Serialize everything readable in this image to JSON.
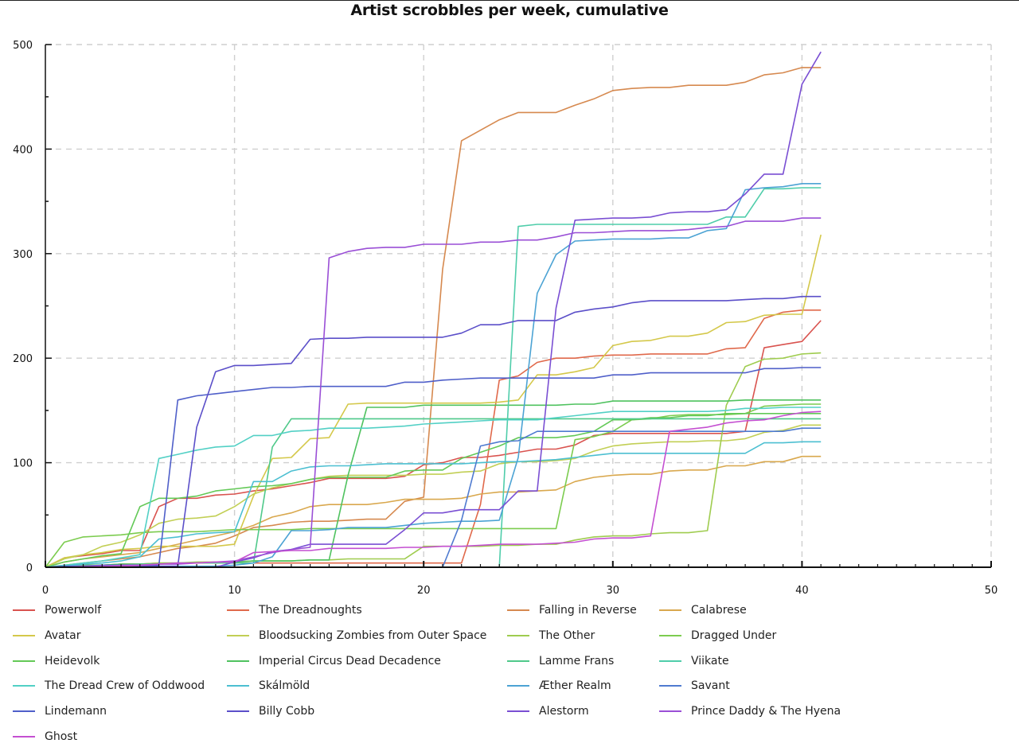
{
  "chart_data": {
    "type": "line",
    "title": "Artist scrobbles per week, cumulative",
    "xlabel": "",
    "ylabel": "",
    "xlim": [
      0,
      50
    ],
    "ylim": [
      0,
      500
    ],
    "x_ticks": [
      0,
      10,
      20,
      30,
      40,
      50
    ],
    "y_ticks": [
      0,
      100,
      200,
      300,
      400,
      500
    ],
    "grid": true,
    "legend_position": "bottom",
    "x": [
      0,
      1,
      2,
      3,
      4,
      5,
      6,
      7,
      8,
      9,
      10,
      11,
      12,
      13,
      14,
      15,
      16,
      17,
      18,
      19,
      20,
      21,
      22,
      23,
      24,
      25,
      26,
      27,
      28,
      29,
      30,
      31,
      32,
      33,
      34,
      35,
      36,
      37,
      38,
      39,
      40,
      41
    ],
    "series": [
      {
        "name": "Powerwolf",
        "color": "#d9534f",
        "values": [
          0,
          9,
          11,
          13,
          16,
          16,
          58,
          66,
          66,
          69,
          70,
          73,
          75,
          78,
          81,
          85,
          85,
          85,
          85,
          87,
          98,
          100,
          105,
          105,
          107,
          110,
          113,
          113,
          117,
          126,
          128,
          128,
          128,
          128,
          128,
          128,
          128,
          130,
          210,
          213,
          216,
          236
        ]
      },
      {
        "name": "The Dreadnoughts",
        "color": "#e0694b",
        "values": [
          0,
          1,
          2,
          2,
          3,
          3,
          4,
          4,
          4,
          4,
          4,
          4,
          4,
          4,
          4,
          4,
          4,
          4,
          4,
          4,
          4,
          4,
          4,
          60,
          179,
          183,
          196,
          200,
          200,
          202,
          203,
          203,
          204,
          204,
          204,
          204,
          209,
          210,
          238,
          244,
          246,
          246
        ]
      },
      {
        "name": "Falling in Reverse",
        "color": "#d6894f",
        "values": [
          0,
          2,
          4,
          6,
          8,
          10,
          14,
          18,
          20,
          23,
          30,
          38,
          40,
          43,
          44,
          44,
          45,
          46,
          46,
          63,
          67,
          285,
          408,
          418,
          428,
          435,
          435,
          435,
          442,
          448,
          456,
          458,
          459,
          459,
          461,
          461,
          461,
          464,
          471,
          473,
          478,
          478
        ]
      },
      {
        "name": "Calabrese",
        "color": "#d9a84e",
        "values": [
          0,
          5,
          8,
          10,
          12,
          14,
          18,
          22,
          26,
          30,
          34,
          40,
          48,
          52,
          58,
          60,
          60,
          60,
          62,
          65,
          65,
          65,
          66,
          70,
          72,
          72,
          73,
          74,
          82,
          86,
          88,
          89,
          89,
          92,
          93,
          93,
          97,
          97,
          101,
          101,
          106,
          106
        ]
      },
      {
        "name": "Avatar",
        "color": "#d4c84a",
        "values": [
          0,
          9,
          12,
          14,
          17,
          18,
          20,
          20,
          20,
          20,
          22,
          68,
          104,
          105,
          123,
          124,
          156,
          157,
          157,
          157,
          157,
          157,
          157,
          157,
          158,
          160,
          184,
          184,
          187,
          191,
          212,
          216,
          217,
          221,
          221,
          224,
          234,
          235,
          241,
          242,
          242,
          318
        ]
      },
      {
        "name": "Bloodsucking Zombies from Outer Space",
        "color": "#c2cf55",
        "values": [
          0,
          8,
          12,
          20,
          24,
          31,
          42,
          46,
          47,
          49,
          58,
          70,
          76,
          80,
          84,
          87,
          88,
          88,
          88,
          88,
          89,
          89,
          91,
          92,
          99,
          101,
          101,
          102,
          104,
          111,
          116,
          118,
          119,
          120,
          120,
          121,
          121,
          123,
          129,
          131,
          136,
          136
        ]
      },
      {
        "name": "The Other",
        "color": "#9fcc4f",
        "values": [
          0,
          1,
          2,
          2,
          3,
          3,
          4,
          4,
          5,
          5,
          5,
          6,
          6,
          6,
          7,
          7,
          8,
          8,
          8,
          8,
          20,
          20,
          20,
          20,
          21,
          21,
          22,
          22,
          26,
          29,
          30,
          30,
          32,
          33,
          33,
          35,
          155,
          192,
          199,
          200,
          204,
          205
        ]
      },
      {
        "name": "Dragged Under",
        "color": "#7ccc4f",
        "values": [
          0,
          24,
          29,
          30,
          31,
          33,
          34,
          34,
          34,
          35,
          36,
          36,
          36,
          36,
          37,
          37,
          37,
          37,
          37,
          37,
          37,
          37,
          37,
          37,
          37,
          37,
          37,
          37,
          122,
          125,
          130,
          141,
          142,
          145,
          146,
          146,
          146,
          147,
          154,
          155,
          156,
          156
        ]
      },
      {
        "name": "Heidevolk",
        "color": "#63c957",
        "values": [
          0,
          5,
          8,
          11,
          13,
          58,
          66,
          66,
          68,
          73,
          75,
          77,
          78,
          80,
          84,
          86,
          86,
          86,
          86,
          92,
          93,
          93,
          104,
          110,
          116,
          124,
          124,
          124,
          126,
          130,
          141,
          141,
          143,
          143,
          145,
          145,
          147,
          147,
          147,
          147,
          147,
          147
        ]
      },
      {
        "name": "Imperial Circus Dead Decadence",
        "color": "#4fc25f",
        "values": [
          0,
          1,
          2,
          2,
          3,
          3,
          3,
          4,
          4,
          4,
          5,
          6,
          6,
          6,
          7,
          7,
          88,
          153,
          153,
          153,
          155,
          155,
          155,
          155,
          155,
          155,
          155,
          155,
          156,
          156,
          159,
          159,
          159,
          159,
          159,
          159,
          159,
          160,
          160,
          160,
          160,
          160
        ]
      },
      {
        "name": "Lamme Frans",
        "color": "#4fc98a",
        "values": [
          0,
          1,
          1,
          2,
          2,
          3,
          3,
          4,
          4,
          4,
          4,
          4,
          115,
          142,
          142,
          142,
          142,
          142,
          142,
          142,
          142,
          142,
          142,
          142,
          142,
          142,
          142,
          142,
          142,
          142,
          142,
          142,
          142,
          142,
          142,
          142,
          142,
          142,
          142,
          142,
          142,
          142
        ]
      },
      {
        "name": "Viikate",
        "color": "#4fcdaa",
        "values": [
          0,
          0,
          0,
          0,
          0,
          0,
          0,
          0,
          0,
          0,
          0,
          0,
          0,
          0,
          0,
          0,
          0,
          0,
          0,
          0,
          0,
          0,
          0,
          0,
          0,
          326,
          328,
          328,
          328,
          328,
          328,
          328,
          328,
          328,
          328,
          328,
          335,
          335,
          362,
          362,
          363,
          363
        ]
      },
      {
        "name": "The Dread Crew of Oddwood",
        "color": "#52d0c5",
        "values": [
          0,
          2,
          4,
          6,
          9,
          12,
          104,
          108,
          112,
          115,
          116,
          126,
          126,
          130,
          131,
          133,
          133,
          133,
          134,
          135,
          137,
          138,
          139,
          140,
          141,
          141,
          141,
          143,
          145,
          147,
          149,
          149,
          149,
          149,
          149,
          149,
          150,
          152,
          152,
          153,
          153,
          153
        ]
      },
      {
        "name": "Skálmöld",
        "color": "#4cbfd1",
        "values": [
          0,
          1,
          3,
          4,
          6,
          10,
          27,
          29,
          32,
          33,
          34,
          82,
          82,
          92,
          96,
          97,
          97,
          98,
          99,
          99,
          99,
          99,
          99,
          100,
          101,
          101,
          102,
          103,
          105,
          107,
          109,
          109,
          109,
          109,
          109,
          109,
          109,
          109,
          119,
          119,
          120,
          120
        ]
      },
      {
        "name": "Æther Realm",
        "color": "#4ca3d4",
        "values": [
          0,
          0,
          0,
          0,
          0,
          1,
          1,
          1,
          1,
          1,
          2,
          4,
          10,
          35,
          35,
          36,
          38,
          38,
          38,
          40,
          42,
          43,
          44,
          44,
          45,
          105,
          262,
          299,
          312,
          313,
          314,
          314,
          314,
          315,
          315,
          322,
          324,
          361,
          363,
          364,
          367,
          367
        ]
      },
      {
        "name": "Savant",
        "color": "#4f7bd0",
        "values": [
          0,
          0,
          0,
          0,
          0,
          0,
          0,
          0,
          0,
          0,
          0,
          0,
          0,
          0,
          0,
          0,
          0,
          0,
          0,
          0,
          0,
          0,
          45,
          116,
          120,
          121,
          130,
          130,
          130,
          130,
          130,
          130,
          130,
          130,
          130,
          130,
          130,
          130,
          130,
          130,
          133,
          133
        ]
      },
      {
        "name": "Lindemann",
        "color": "#4f5fc9",
        "values": [
          0,
          1,
          1,
          2,
          2,
          2,
          2,
          160,
          164,
          166,
          168,
          170,
          172,
          172,
          173,
          173,
          173,
          173,
          173,
          177,
          177,
          179,
          180,
          181,
          181,
          181,
          181,
          181,
          181,
          181,
          184,
          184,
          186,
          186,
          186,
          186,
          186,
          186,
          190,
          190,
          191,
          191
        ]
      },
      {
        "name": "Billy Cobb",
        "color": "#5b4fc9",
        "values": [
          0,
          0,
          0,
          0,
          0,
          1,
          1,
          1,
          134,
          187,
          193,
          193,
          194,
          195,
          218,
          219,
          219,
          220,
          220,
          220,
          220,
          220,
          224,
          232,
          232,
          236,
          236,
          236,
          244,
          247,
          249,
          253,
          255,
          255,
          255,
          255,
          255,
          256,
          257,
          257,
          259,
          259
        ]
      },
      {
        "name": "Alestorm",
        "color": "#7a4fd3",
        "values": [
          0,
          0,
          0,
          0,
          0,
          0,
          0,
          0,
          0,
          0,
          5,
          9,
          15,
          17,
          22,
          22,
          22,
          22,
          22,
          36,
          52,
          52,
          55,
          55,
          55,
          73,
          73,
          248,
          332,
          333,
          334,
          334,
          335,
          339,
          340,
          340,
          342,
          357,
          376,
          376,
          462,
          493
        ]
      },
      {
        "name": "Prince Daddy & The Hyena",
        "color": "#9a4fd6",
        "values": [
          0,
          0,
          1,
          1,
          2,
          2,
          3,
          3,
          4,
          5,
          6,
          10,
          14,
          17,
          19,
          296,
          302,
          305,
          306,
          306,
          309,
          309,
          309,
          311,
          311,
          313,
          313,
          316,
          320,
          320,
          321,
          322,
          322,
          322,
          323,
          325,
          326,
          331,
          331,
          331,
          334,
          334
        ]
      },
      {
        "name": "Ghost",
        "color": "#c44fd1",
        "values": [
          0,
          0,
          0,
          1,
          1,
          2,
          3,
          4,
          4,
          5,
          5,
          14,
          15,
          16,
          16,
          18,
          18,
          18,
          18,
          19,
          19,
          20,
          20,
          21,
          22,
          22,
          22,
          23,
          24,
          27,
          28,
          28,
          30,
          130,
          132,
          134,
          138,
          140,
          141,
          145,
          148,
          149
        ]
      }
    ]
  },
  "legend": [
    {
      "label": "Powerwolf",
      "color": "#d9534f"
    },
    {
      "label": "The Dreadnoughts",
      "color": "#e0694b"
    },
    {
      "label": "Falling in Reverse",
      "color": "#d6894f"
    },
    {
      "label": "Calabrese",
      "color": "#d9a84e"
    },
    {
      "label": "Avatar",
      "color": "#d4c84a"
    },
    {
      "label": "Bloodsucking Zombies from Outer Space",
      "color": "#c2cf55"
    },
    {
      "label": "The Other",
      "color": "#9fcc4f"
    },
    {
      "label": "Dragged Under",
      "color": "#7ccc4f"
    },
    {
      "label": "Heidevolk",
      "color": "#63c957"
    },
    {
      "label": "Imperial Circus Dead Decadence",
      "color": "#4fc25f"
    },
    {
      "label": "Lamme Frans",
      "color": "#4fc98a"
    },
    {
      "label": "Viikate",
      "color": "#4fcdaa"
    },
    {
      "label": "The Dread Crew of Oddwood",
      "color": "#52d0c5"
    },
    {
      "label": "Skálmöld",
      "color": "#4cbfd1"
    },
    {
      "label": "Æther Realm",
      "color": "#4ca3d4"
    },
    {
      "label": "Savant",
      "color": "#4f7bd0"
    },
    {
      "label": "Lindemann",
      "color": "#4f5fc9"
    },
    {
      "label": "Billy Cobb",
      "color": "#5b4fc9"
    },
    {
      "label": "Alestorm",
      "color": "#7a4fd3"
    },
    {
      "label": "Prince Daddy & The Hyena",
      "color": "#9a4fd6"
    },
    {
      "label": "Ghost",
      "color": "#c44fd1"
    }
  ]
}
